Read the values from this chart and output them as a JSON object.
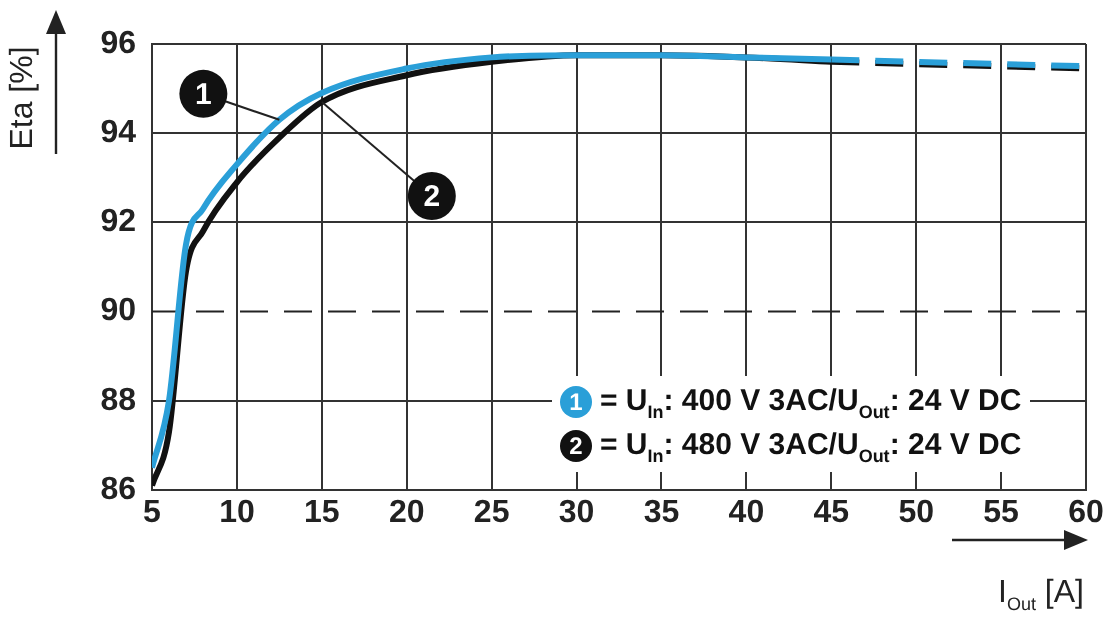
{
  "chart_data": {
    "type": "line",
    "ylabel": "Eta [%]",
    "xlabel": "I$_{Out}$ [A]",
    "xlim": [
      5,
      60
    ],
    "xticks": [
      5,
      10,
      15,
      20,
      25,
      30,
      35,
      40,
      45,
      50,
      55,
      60
    ],
    "ylim": [
      86,
      96
    ],
    "yticks": [
      86,
      88,
      90,
      92,
      94,
      96
    ],
    "grid": true,
    "legend": "bottom right",
    "marker": "none",
    "series": [
      {
        "name": "= U$_{In}$: 400 V 3AC/U$_{Out}$: 24 V DC",
        "color": "#2a9fd8",
        "line_style": "solid",
        "x": [
          5,
          6,
          7,
          8,
          10,
          12.5,
          15,
          20,
          25,
          30,
          35,
          40,
          45
        ],
        "values": [
          86.5,
          88,
          91.5,
          92.3,
          93.3,
          94.3,
          94.9,
          95.45,
          95.7,
          95.75,
          95.75,
          95.7,
          95.65
        ]
      },
      {
        "name": "= U$_{In}$: 480 V 3AC/U$_{Out}$: 24 V DC",
        "color": "#111111",
        "line_style": "solid",
        "x": [
          5,
          6,
          7,
          8,
          10,
          12.5,
          15,
          20,
          25,
          30,
          35,
          40,
          45
        ],
        "values": [
          86.1,
          87.3,
          90.9,
          91.8,
          92.9,
          93.9,
          94.7,
          95.3,
          95.6,
          95.75,
          95.75,
          95.7,
          95.6
        ]
      },
      {
        "color": "#2a9fd8",
        "line_style": "dashed",
        "x": [
          45,
          50,
          55,
          60
        ],
        "values": [
          95.65,
          95.6,
          95.55,
          95.5
        ]
      },
      {
        "color": "#111111",
        "line_style": "dashed",
        "x": [
          45,
          50,
          55,
          60
        ],
        "values": [
          95.6,
          95.55,
          95.5,
          95.45
        ]
      }
    ],
    "ref_lines": [
      {
        "axis": "y",
        "value": 90,
        "color": "#222222",
        "line_style": "dashed"
      }
    ],
    "annotations": [
      {
        "text": "1",
        "x": 12.5,
        "y": 94.3
      },
      {
        "text": "2",
        "x": 15,
        "y": 94.7
      }
    ]
  }
}
